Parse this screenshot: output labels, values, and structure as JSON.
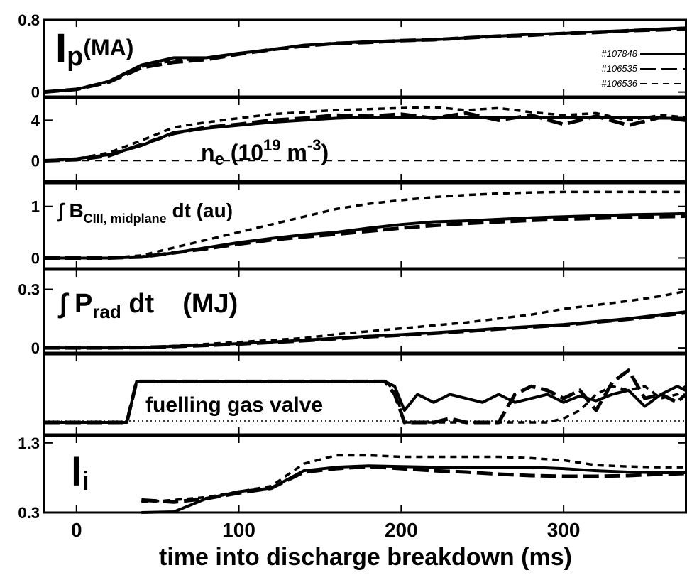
{
  "chart_data": [
    {
      "type": "line",
      "label": [
        "I",
        "p",
        "(MA)"
      ],
      "xlim": [
        -20,
        376
      ],
      "xticks": [
        0,
        100,
        200,
        300
      ],
      "ylim": [
        -0.05,
        0.8
      ],
      "yticks": [
        0,
        0.8
      ],
      "x": [
        -20,
        0,
        20,
        40,
        60,
        80,
        100,
        120,
        140,
        160,
        180,
        200,
        220,
        240,
        260,
        280,
        300,
        320,
        340,
        360,
        375
      ],
      "series": [
        {
          "name": "#107848",
          "color": "#000000",
          "dash": "solid",
          "values": [
            0,
            0.03,
            0.12,
            0.3,
            0.38,
            0.38,
            0.43,
            0.47,
            0.52,
            0.54,
            0.56,
            0.57,
            0.58,
            0.6,
            0.62,
            0.64,
            0.65,
            0.67,
            0.68,
            0.7,
            0.71
          ]
        },
        {
          "name": "#106535",
          "color": "#000000",
          "dash": "long",
          "values": [
            0,
            0.03,
            0.11,
            0.27,
            0.33,
            0.36,
            0.42,
            0.47,
            0.51,
            0.54,
            0.55,
            0.57,
            0.58,
            0.6,
            0.62,
            0.63,
            0.65,
            0.66,
            0.68,
            0.69,
            0.7
          ]
        },
        {
          "name": "#106536",
          "color": "#000000",
          "dash": "short",
          "values": [
            0,
            0.03,
            0.12,
            0.28,
            0.35,
            0.37,
            0.43,
            0.47,
            0.52,
            0.54,
            0.55,
            0.57,
            0.58,
            0.6,
            0.62,
            0.64,
            0.65,
            0.67,
            0.68,
            0.7,
            0.71
          ]
        }
      ]
    },
    {
      "type": "line",
      "label": [
        "n",
        "e",
        " (10",
        "19",
        " m",
        "-3",
        ")"
      ],
      "zero_line": true,
      "xlim": [
        -20,
        376
      ],
      "xticks": [
        0,
        100,
        200,
        300
      ],
      "ylim": [
        -2,
        6.2
      ],
      "yticks": [
        0,
        4
      ],
      "x": [
        -20,
        0,
        20,
        40,
        60,
        80,
        100,
        120,
        140,
        160,
        180,
        200,
        220,
        240,
        260,
        280,
        300,
        320,
        340,
        360,
        375
      ],
      "series": [
        {
          "color": "#000000",
          "dash": "solid",
          "values": [
            0,
            0.2,
            0.6,
            1.5,
            2.8,
            3.2,
            3.5,
            3.8,
            4,
            4.2,
            4.3,
            4.3,
            4.3,
            4.3,
            4.3,
            4.3,
            4.3,
            4.3,
            4.3,
            4.2,
            4.2
          ]
        },
        {
          "color": "#000000",
          "dash": "long",
          "values": [
            0,
            0.1,
            0.5,
            1.6,
            2.7,
            3.3,
            3.6,
            4,
            4.2,
            4.5,
            4.4,
            4.6,
            4.2,
            4.7,
            4,
            4.5,
            3.6,
            4.4,
            3.5,
            4.3,
            4
          ]
        },
        {
          "color": "#000000",
          "dash": "short",
          "values": [
            0,
            0.2,
            0.8,
            2,
            3.3,
            3.8,
            4.2,
            4.6,
            4.8,
            5,
            5.1,
            5.2,
            5.3,
            5,
            5.2,
            4.8,
            4.5,
            4.7,
            4,
            4.5,
            4.3
          ]
        }
      ]
    },
    {
      "type": "line",
      "label": [
        "∫ B",
        "CIII, midplane",
        " dt  (au)"
      ],
      "xlim": [
        -20,
        376
      ],
      "xticks": [
        0,
        100,
        200,
        300
      ],
      "ylim": [
        -0.2,
        1.45
      ],
      "yticks": [
        0,
        1
      ],
      "x": [
        -20,
        0,
        20,
        40,
        60,
        80,
        100,
        120,
        140,
        160,
        180,
        200,
        220,
        240,
        260,
        280,
        300,
        320,
        340,
        360,
        375
      ],
      "series": [
        {
          "color": "#000000",
          "dash": "solid",
          "values": [
            0,
            0,
            0,
            0.02,
            0.1,
            0.2,
            0.3,
            0.38,
            0.45,
            0.5,
            0.58,
            0.65,
            0.7,
            0.72,
            0.75,
            0.78,
            0.8,
            0.82,
            0.84,
            0.85,
            0.86
          ]
        },
        {
          "color": "#000000",
          "dash": "long",
          "values": [
            0,
            0,
            0,
            0.02,
            0.1,
            0.18,
            0.27,
            0.35,
            0.41,
            0.46,
            0.52,
            0.58,
            0.63,
            0.67,
            0.7,
            0.73,
            0.75,
            0.77,
            0.79,
            0.8,
            0.81
          ]
        },
        {
          "color": "#000000",
          "dash": "short",
          "values": [
            0,
            0,
            0,
            0.05,
            0.2,
            0.35,
            0.5,
            0.65,
            0.8,
            0.95,
            1.05,
            1.12,
            1.18,
            1.22,
            1.25,
            1.27,
            1.28,
            1.28,
            1.28,
            1.28,
            1.28
          ]
        }
      ]
    },
    {
      "type": "line",
      "label": [
        "∫ P",
        "rad",
        " dt",
        "(MJ)"
      ],
      "xlim": [
        -20,
        376
      ],
      "xticks": [
        0,
        100,
        200,
        300
      ],
      "ylim": [
        -0.025,
        0.4
      ],
      "yticks": [
        0,
        0.3
      ],
      "x": [
        -20,
        0,
        20,
        40,
        60,
        80,
        100,
        120,
        140,
        160,
        180,
        200,
        220,
        240,
        260,
        280,
        300,
        320,
        340,
        360,
        375
      ],
      "series": [
        {
          "color": "#000000",
          "dash": "solid",
          "values": [
            0,
            0,
            0,
            0.002,
            0.008,
            0.015,
            0.022,
            0.03,
            0.04,
            0.05,
            0.06,
            0.068,
            0.078,
            0.088,
            0.1,
            0.11,
            0.12,
            0.135,
            0.15,
            0.17,
            0.185
          ]
        },
        {
          "color": "#000000",
          "dash": "long",
          "values": [
            0,
            0,
            0,
            0.002,
            0.007,
            0.013,
            0.02,
            0.028,
            0.037,
            0.047,
            0.057,
            0.065,
            0.075,
            0.085,
            0.097,
            0.107,
            0.117,
            0.132,
            0.147,
            0.165,
            0.18
          ]
        },
        {
          "color": "#000000",
          "dash": "short",
          "values": [
            0,
            0,
            0,
            0.003,
            0.01,
            0.02,
            0.03,
            0.04,
            0.05,
            0.07,
            0.085,
            0.1,
            0.115,
            0.13,
            0.15,
            0.17,
            0.2,
            0.22,
            0.24,
            0.265,
            0.29
          ]
        }
      ]
    },
    {
      "type": "line",
      "label": [
        "fuelling gas valve"
      ],
      "xlim": [
        -20,
        376
      ],
      "xticks": [
        0,
        100,
        200,
        300
      ],
      "ylim": [
        0,
        1
      ],
      "x": [
        -20,
        31,
        37,
        45,
        190,
        196,
        202,
        210,
        220,
        230,
        240,
        250,
        260,
        270,
        280,
        290,
        300,
        310,
        320,
        330,
        340,
        350,
        360,
        370,
        375
      ],
      "series": [
        {
          "color": "#000000",
          "dash": "solid",
          "values": [
            0.15,
            0.15,
            0.66,
            0.66,
            0.66,
            0.6,
            0.3,
            0.5,
            0.4,
            0.5,
            0.45,
            0.4,
            0.5,
            0.4,
            0.45,
            0.5,
            0.4,
            0.48,
            0.42,
            0.5,
            0.55,
            0.35,
            0.5,
            0.6,
            0.55
          ]
        },
        {
          "color": "#000000",
          "dash": "long",
          "values": [
            0.15,
            0.15,
            0.66,
            0.66,
            0.66,
            0.5,
            0.15,
            0.15,
            0.15,
            0.2,
            0.15,
            0.15,
            0.15,
            0.5,
            0.6,
            0.55,
            0.45,
            0.55,
            0.3,
            0.65,
            0.8,
            0.45,
            0.5,
            0.4,
            0.5
          ]
        },
        {
          "color": "#000000",
          "dash": "short",
          "values": [
            0.15,
            0.15,
            0.66,
            0.66,
            0.66,
            0.55,
            0.15,
            0.15,
            0.15,
            0.15,
            0.15,
            0.15,
            0.15,
            0.15,
            0.15,
            0.15,
            0.2,
            0.3,
            0.5,
            0.6,
            0.55,
            0.6,
            0.45,
            0.5,
            0.6
          ]
        }
      ]
    },
    {
      "type": "line",
      "label": [
        "l",
        "i"
      ],
      "x_label": "time into discharge breakdown (ms)",
      "xlim": [
        -20,
        376
      ],
      "xticks": [
        0,
        100,
        200,
        300
      ],
      "ylim": [
        0.3,
        1.4
      ],
      "yticks": [
        0.3,
        1.3
      ],
      "x": [
        40,
        60,
        80,
        100,
        120,
        140,
        160,
        180,
        200,
        220,
        240,
        260,
        280,
        300,
        320,
        340,
        360,
        375
      ],
      "series": [
        {
          "color": "#000000",
          "dash": "solid",
          "values": [
            0.3,
            0.31,
            0.5,
            0.6,
            0.65,
            0.9,
            0.95,
            0.97,
            0.96,
            0.95,
            0.95,
            0.95,
            0.95,
            0.93,
            0.9,
            0.88,
            0.87,
            0.87
          ]
        },
        {
          "color": "#000000",
          "dash": "long",
          "values": [
            0.48,
            0.45,
            0.5,
            0.58,
            0.65,
            0.88,
            0.93,
            0.96,
            0.93,
            0.9,
            0.88,
            0.85,
            0.83,
            0.82,
            0.82,
            0.83,
            0.85,
            0.86
          ]
        },
        {
          "color": "#000000",
          "dash": "short",
          "values": [
            0.45,
            0.48,
            0.52,
            0.6,
            0.68,
            1.0,
            1.12,
            1.12,
            1.1,
            1.1,
            1.1,
            1.1,
            1.08,
            1.05,
            0.98,
            0.96,
            0.95,
            0.95
          ]
        }
      ]
    }
  ]
}
